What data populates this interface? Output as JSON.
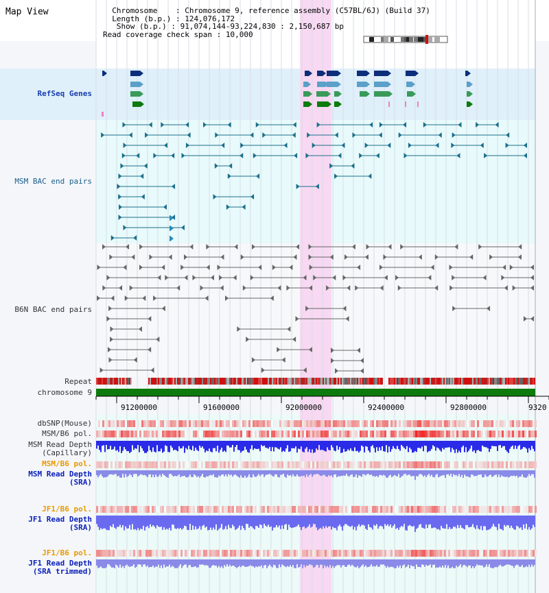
{
  "window": {
    "title": "Map View"
  },
  "info": {
    "chromosome_key": "Chromosome",
    "chromosome_val": "Chromosome 9, reference assembly (C57BL/6J) (Build 37)",
    "length_key": "Length (b.p.)",
    "length_val": "124,076,172",
    "show_key": "Show (b.p.)",
    "show_val": "91,074,144-93,224,830 : 2,150,687 bp",
    "coverage_key": "Read coverage check span",
    "coverage_val": "10,000"
  },
  "tracks": {
    "refseq": "RefSeq Genes",
    "msm_bac": "MSM BAC end pairs",
    "b6n_bac": "B6N BAC end pairs",
    "repeat": "Repeat",
    "chromosome": "chromosome 9",
    "dbsnp": "dbSNP(Mouse)",
    "msm_b6_pol": "MSM/B6 pol.",
    "msm_read_depth_cap_1": "MSM Read Depth",
    "msm_read_depth_cap_2": "(Capillary)",
    "msm_b6_pol2": "MSM/B6 pol.",
    "msm_read_depth_sra_1": "MSM Read Depth",
    "msm_read_depth_sra_2": "(SRA)",
    "jf1_b6_pol": "JF1/B6 pol.",
    "jf1_read_depth_sra_1": "JF1 Read Depth",
    "jf1_read_depth_sra_2": "(SRA)",
    "jf1_b6_pol2": "JF1/B6 pol.",
    "jf1_read_depth_trim_1": "JF1 Read Depth",
    "jf1_read_depth_trim_2": "(SRA trimmed)"
  },
  "axis": {
    "ticks": [
      "91200000",
      "91600000",
      "92000000",
      "92400000",
      "92800000",
      "9320"
    ]
  },
  "colors": {
    "refseq_bg": "#dff0fa",
    "bac_bg": "#e8fafb",
    "highlight": "#f8d8f2",
    "chromosome_bar": "#0d7a0d",
    "gene_navy": "#0d2e7a",
    "gene_light": "#5aa0c8",
    "gene_green": "#0d7a0d",
    "msm_line": "#1a6f8a",
    "b6n_line": "#666666",
    "depth_blue": "#2a2ae8",
    "depth_light": "#8a8ae8",
    "pol_red": "#e81a1a"
  }
}
